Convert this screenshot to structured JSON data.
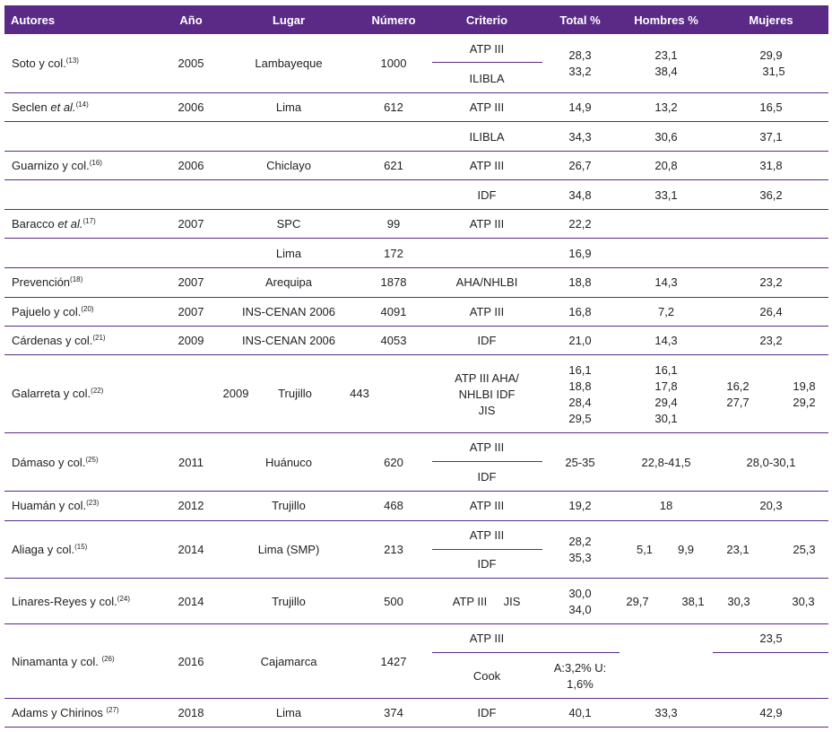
{
  "headers": {
    "autores": "Autores",
    "anio": "Año",
    "lugar": "Lugar",
    "numero": "Número",
    "criterio": "Criterio",
    "total": "Total %",
    "hombres": "Hombres %",
    "mujeres": "Mujeres %"
  },
  "rows": {
    "soto": {
      "autor": "Soto y col.",
      "ref": "(13)",
      "anio": "2005",
      "lugar": "Lambayeque",
      "numero": "1000",
      "criterio1": "ATP III",
      "criterio2": "ILIBLA",
      "total1": "28,3",
      "total2": "33,2",
      "hombres1": "23,1",
      "hombres2": "38,4",
      "mujeres1": "29,9",
      "mujeres2": "31,5"
    },
    "seclen": {
      "autor": "Seclen ",
      "autor_it": "et al.",
      "ref": "(14)",
      "anio": "2006",
      "lugar": "Lima",
      "numero": "612",
      "criterio": "ATP III",
      "total": "14,9",
      "hombres": "13,2",
      "mujeres": "16,5"
    },
    "seclen2": {
      "criterio": "ILIBLA",
      "total": "34,3",
      "hombres": "30,6",
      "mujeres": "37,1"
    },
    "guarnizo": {
      "autor": "Guarnizo y col.",
      "ref": "(16)",
      "anio": "2006",
      "lugar": "Chiclayo",
      "numero": "621",
      "criterio": "ATP III",
      "total": "26,7",
      "hombres": "20,8",
      "mujeres": "31,8"
    },
    "guarnizo2": {
      "criterio": "IDF",
      "total": "34,8",
      "hombres": "33,1",
      "mujeres": "36,2"
    },
    "baracco": {
      "autor": "Baracco ",
      "autor_it": "et al.",
      "ref": "(17)",
      "anio": "2007",
      "lugar": "SPC",
      "numero": "99",
      "criterio": "ATP III",
      "total": "22,2"
    },
    "baracco2": {
      "lugar": "Lima",
      "numero": "172",
      "total": "16,9"
    },
    "prevencion": {
      "autor": "Prevención",
      "ref": "(18)",
      "anio": "2007",
      "lugar": "Arequipa",
      "numero": "1878",
      "criterio": "AHA/NHLBI",
      "total": "18,8",
      "hombres": "14,3",
      "mujeres": "23,2"
    },
    "pajuelo": {
      "autor": "Pajuelo y col.",
      "ref": "(20)",
      "anio": "2007",
      "lugar": "INS-CENAN 2006",
      "numero": "4091",
      "criterio": "ATP III",
      "total": "16,8",
      "hombres": "7,2",
      "mujeres": "26,4"
    },
    "cardenas": {
      "autor": "Cárdenas y col.",
      "ref": "(21)",
      "anio": "2009",
      "lugar": "INS-CENAN 2006",
      "numero": "4053",
      "criterio": "IDF",
      "total": "21,0",
      "hombres": "14,3",
      "mujeres": "23,2"
    },
    "galarreta": {
      "autor": "Galarreta y col.",
      "ref": "(22)",
      "anio": "2009",
      "lugar": "Trujillo",
      "numero": "443",
      "criterio1": "ATP III  AHA/",
      "criterio2": "NHLBI IDF",
      "criterio3": "JIS",
      "total1": "16,1",
      "total2": "18,8",
      "total3": "28,4",
      "total4": "29,5",
      "hombres1": "16,1",
      "hombres2": "17,8",
      "hombres3": "29,4",
      "hombres4": "30,1",
      "mujA1": "16,2",
      "mujA2": "27,7",
      "mujB1": "19,8",
      "mujB2": "29,2"
    },
    "damaso": {
      "autor": "Dámaso y  col.",
      "ref": "(25)",
      "anio": "2011",
      "lugar": "Huánuco",
      "numero": "620",
      "criterio1": "ATP III",
      "criterio2": "IDF",
      "total": "25-35",
      "hombres": "22,8-41,5",
      "mujeres": "28,0-30,1"
    },
    "huaman": {
      "autor": "Huamán y col.",
      "ref": "(23)",
      "anio": "2012",
      "lugar": "Trujillo",
      "numero": "468",
      "criterio": "ATP III",
      "total": "19,2",
      "hombres": "18",
      "mujeres": "20,3"
    },
    "aliaga": {
      "autor": "Aliaga y col.",
      "ref": "(15)",
      "anio": "2014",
      "lugar": "Lima (SMP)",
      "numero": "213",
      "criterio1": "ATP III",
      "criterio2": "IDF",
      "total1": "28,2",
      "total2": "35,3",
      "hombres1": "5,1",
      "hombres2": "9,9",
      "mujeres1": "23,1",
      "mujeres2": "25,3"
    },
    "linares": {
      "autor": "Linares-Reyes y col.",
      "ref": "(24)",
      "anio": "2014",
      "lugar": "Trujillo",
      "numero": "500",
      "criterio1": "ATP III",
      "criterio2": "JIS",
      "total1": "30,0",
      "total2": "34,0",
      "hombres1": "29,7",
      "hombres2": "38,1",
      "mujeres1": "30,3",
      "mujeres2": "30,3"
    },
    "ninamanta": {
      "autor": "Ninamanta y col. ",
      "ref": "(26)",
      "anio": "2016",
      "lugar": "Cajamarca",
      "numero": "1427",
      "criterio1": "ATP III",
      "criterio2": "Cook",
      "total1": "A:3,2%  U:",
      "total2": "1,6%",
      "mujeres": "23,5"
    },
    "adams": {
      "autor": "Adams y Chirinos ",
      "ref": "(27)",
      "anio": "2018",
      "lugar": "Lima",
      "numero": "374",
      "criterio": "IDF",
      "total": "40,1",
      "hombres": "33,3",
      "mujeres": "42,9"
    }
  }
}
